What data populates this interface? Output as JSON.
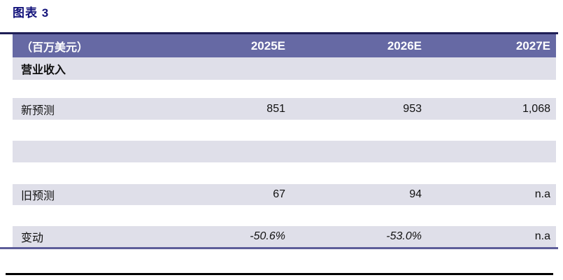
{
  "title": "图表 3",
  "colors": {
    "title_color": "#13137B",
    "header_bg": "#6669A4",
    "header_text": "#FFFFFF",
    "row_bg": "#DFDFE9",
    "body_text": "#111111",
    "top_rule": "#1E1E55",
    "purple_rule": "#5D5D99",
    "bottom_rule": "#000000"
  },
  "table": {
    "header": {
      "unit": "（百万美元）",
      "col1": "2025E",
      "col2": "2026E",
      "col3": "2027E"
    },
    "rows": [
      {
        "label": "营业收入",
        "values": [
          "",
          "",
          ""
        ]
      },
      {
        "label": "新预测",
        "values": [
          "851",
          "953",
          "1,068"
        ]
      },
      {
        "label": "",
        "values": [
          "",
          "",
          ""
        ]
      },
      {
        "label": "旧预测",
        "values": [
          "67",
          "94",
          "n.a"
        ]
      },
      {
        "label": "变动",
        "values": [
          "-50.6%",
          "-53.0%",
          "n.a"
        ]
      }
    ]
  }
}
